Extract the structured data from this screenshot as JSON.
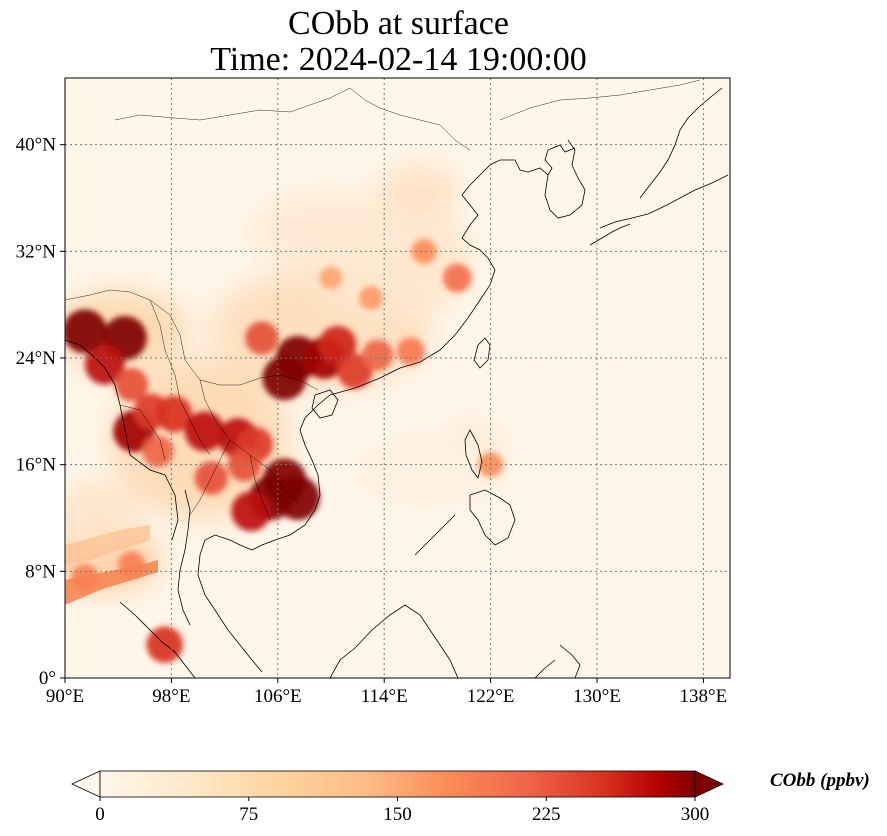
{
  "title": {
    "line1": "CObb at surface",
    "line2": "Time: 2024-02-14 19:00:00"
  },
  "map": {
    "projection": "PlateCarree",
    "extent": {
      "lon_min": 90,
      "lon_max": 140,
      "lat_min": 0,
      "lat_max": 45
    },
    "lon_ticks": [
      90,
      98,
      106,
      114,
      122,
      130,
      138
    ],
    "lat_ticks": [
      0,
      8,
      16,
      24,
      32,
      40
    ],
    "lon_tick_labels": [
      "90°E",
      "98°E",
      "106°E",
      "114°E",
      "122°E",
      "130°E",
      "138°E"
    ],
    "lat_tick_labels": [
      "0°",
      "8°N",
      "16°N",
      "24°N",
      "32°N",
      "40°N"
    ],
    "gridlines": "dotted",
    "variable": "CObb",
    "level": "surface",
    "hotspots": [
      {
        "lon": 91.5,
        "lat": 26.0,
        "value": 300
      },
      {
        "lon": 94.5,
        "lat": 25.5,
        "value": 300
      },
      {
        "lon": 93.0,
        "lat": 23.5,
        "value": 260
      },
      {
        "lon": 95.0,
        "lat": 22.0,
        "value": 200
      },
      {
        "lon": 95.2,
        "lat": 18.5,
        "value": 280
      },
      {
        "lon": 96.5,
        "lat": 20.0,
        "value": 220
      },
      {
        "lon": 97.0,
        "lat": 17.0,
        "value": 180
      },
      {
        "lon": 98.2,
        "lat": 19.8,
        "value": 230
      },
      {
        "lon": 100.5,
        "lat": 18.5,
        "value": 260
      },
      {
        "lon": 103.0,
        "lat": 18.0,
        "value": 260
      },
      {
        "lon": 104.3,
        "lat": 17.5,
        "value": 220
      },
      {
        "lon": 101.0,
        "lat": 15.0,
        "value": 200
      },
      {
        "lon": 103.5,
        "lat": 16.0,
        "value": 200
      },
      {
        "lon": 105.5,
        "lat": 13.5,
        "value": 300
      },
      {
        "lon": 107.5,
        "lat": 13.5,
        "value": 300
      },
      {
        "lon": 106.5,
        "lat": 14.8,
        "value": 300
      },
      {
        "lon": 104.0,
        "lat": 12.5,
        "value": 260
      },
      {
        "lon": 106.5,
        "lat": 22.5,
        "value": 300
      },
      {
        "lon": 107.5,
        "lat": 24.0,
        "value": 300
      },
      {
        "lon": 109.5,
        "lat": 24.0,
        "value": 280
      },
      {
        "lon": 110.5,
        "lat": 25.0,
        "value": 240
      },
      {
        "lon": 111.8,
        "lat": 23.0,
        "value": 220
      },
      {
        "lon": 104.8,
        "lat": 25.5,
        "value": 200
      },
      {
        "lon": 113.5,
        "lat": 24.2,
        "value": 180
      },
      {
        "lon": 116.0,
        "lat": 24.5,
        "value": 150
      },
      {
        "lon": 119.5,
        "lat": 30.0,
        "value": 160
      },
      {
        "lon": 117.0,
        "lat": 32.0,
        "value": 120
      },
      {
        "lon": 113.0,
        "lat": 28.5,
        "value": 110
      },
      {
        "lon": 110.0,
        "lat": 30.0,
        "value": 100
      },
      {
        "lon": 122.0,
        "lat": 16.0,
        "value": 120
      },
      {
        "lon": 97.5,
        "lat": 2.5,
        "value": 230
      },
      {
        "lon": 91.5,
        "lat": 7.5,
        "value": 140
      },
      {
        "lon": 95.0,
        "lat": 8.5,
        "value": 140
      }
    ]
  },
  "colorbar": {
    "colormap": "OrRd",
    "min": 0,
    "max": 300,
    "extend": "both",
    "ticks": [
      0,
      75,
      150,
      225,
      300
    ],
    "tick_labels": [
      "0",
      "75",
      "150",
      "225",
      "300"
    ],
    "label": "CObb (ppbv)"
  }
}
